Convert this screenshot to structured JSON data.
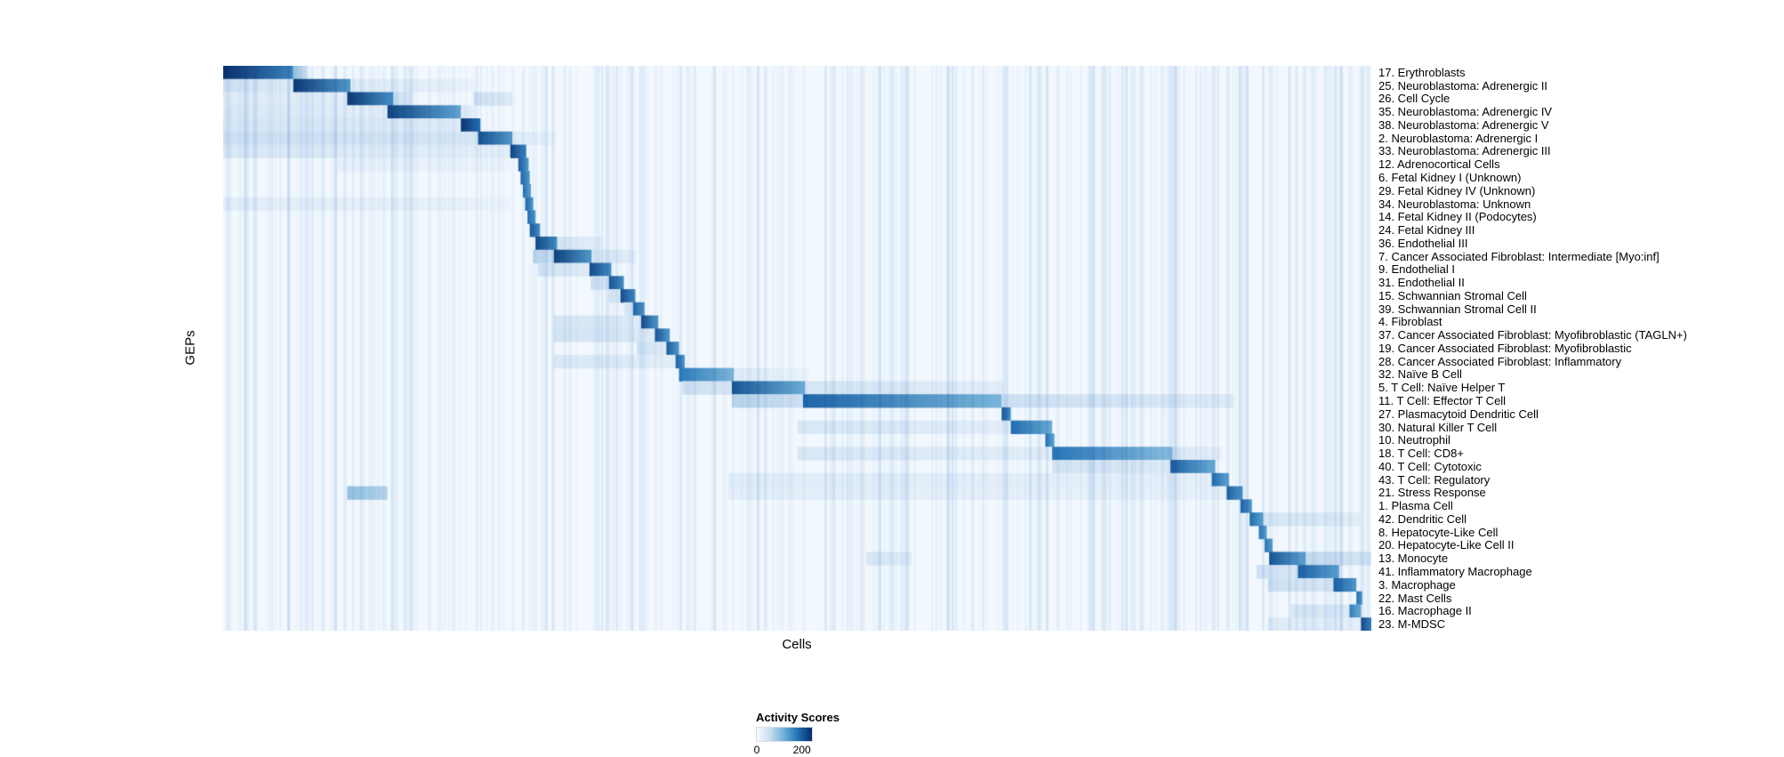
{
  "figure": {
    "y_axis_label": "GEPs",
    "x_axis_label": "Cells"
  },
  "legend": {
    "title": "Activity Scores",
    "min_label": "0",
    "max_label": "200"
  },
  "chart_data": {
    "type": "heatmap",
    "title": "",
    "xlabel": "Cells",
    "ylabel": "GEPs",
    "legend_position": "bottom-center",
    "grid": false,
    "colorbar": {
      "title": "Activity Scores",
      "ticks": [
        0,
        200
      ]
    },
    "colormap": {
      "stops": [
        "#f7fbff",
        "#c6dbef",
        "#6baed6",
        "#2171b5",
        "#08306b"
      ],
      "vmin": 0,
      "vmax": 240
    },
    "background_value": 6,
    "rows": [
      {
        "label": "17. Erythroblasts",
        "segments": [
          [
            0.0,
            0.061,
            240,
            160
          ],
          [
            0.061,
            0.073,
            100,
            40
          ]
        ]
      },
      {
        "label": "25. Neuroblastoma: Adrenergic II",
        "segments": [
          [
            0.0,
            0.061,
            50,
            30
          ],
          [
            0.061,
            0.111,
            230,
            140
          ],
          [
            0.111,
            0.22,
            30,
            15
          ]
        ]
      },
      {
        "label": "26. Cell Cycle",
        "segments": [
          [
            0.0,
            0.108,
            30,
            25
          ],
          [
            0.108,
            0.148,
            230,
            150
          ],
          [
            0.148,
            0.165,
            60,
            20
          ],
          [
            0.218,
            0.252,
            50,
            30
          ]
        ]
      },
      {
        "label": "35. Neuroblastoma: Adrenergic IV",
        "segments": [
          [
            0.0,
            0.143,
            35,
            25
          ],
          [
            0.143,
            0.207,
            220,
            130
          ],
          [
            0.207,
            0.22,
            40,
            20
          ]
        ]
      },
      {
        "label": "38. Neuroblastoma: Adrenergic V",
        "segments": [
          [
            0.0,
            0.207,
            40,
            30
          ],
          [
            0.207,
            0.224,
            235,
            180
          ]
        ]
      },
      {
        "label": "2. Neuroblastoma: Adrenergic I",
        "segments": [
          [
            0.0,
            0.222,
            50,
            40
          ],
          [
            0.222,
            0.252,
            210,
            140
          ],
          [
            0.252,
            0.29,
            30,
            15
          ]
        ]
      },
      {
        "label": "33. Neuroblastoma: Adrenergic III",
        "segments": [
          [
            0.0,
            0.25,
            35,
            25
          ],
          [
            0.25,
            0.264,
            220,
            160
          ]
        ]
      },
      {
        "label": "12. Adrenocortical Cells",
        "segments": [
          [
            0.1,
            0.25,
            20,
            15
          ],
          [
            0.257,
            0.266,
            200,
            140
          ]
        ]
      },
      {
        "label": "6. Fetal Kidney I (Unknown)",
        "segments": [
          [
            0.259,
            0.267,
            190,
            140
          ]
        ]
      },
      {
        "label": "29. Fetal Kidney IV (Unknown)",
        "segments": [
          [
            0.261,
            0.268,
            180,
            130
          ]
        ]
      },
      {
        "label": "34. Neuroblastoma: Unknown",
        "segments": [
          [
            0.0,
            0.25,
            25,
            15
          ],
          [
            0.263,
            0.27,
            190,
            140
          ]
        ]
      },
      {
        "label": "14. Fetal Kidney II (Podocytes)",
        "segments": [
          [
            0.265,
            0.272,
            185,
            140
          ]
        ]
      },
      {
        "label": "24. Fetal Kidney III",
        "segments": [
          [
            0.267,
            0.276,
            200,
            150
          ]
        ]
      },
      {
        "label": "36. Endothelial III",
        "segments": [
          [
            0.272,
            0.291,
            220,
            150
          ],
          [
            0.291,
            0.33,
            45,
            20
          ]
        ]
      },
      {
        "label": "7. Cancer Associated Fibroblast: Intermediate [Myo:inf]",
        "segments": [
          [
            0.27,
            0.288,
            70,
            50
          ],
          [
            0.288,
            0.321,
            225,
            140
          ],
          [
            0.321,
            0.36,
            40,
            20
          ]
        ]
      },
      {
        "label": "9. Endothelial I",
        "segments": [
          [
            0.274,
            0.319,
            45,
            30
          ],
          [
            0.319,
            0.338,
            215,
            150
          ]
        ]
      },
      {
        "label": "31. Endothelial II",
        "segments": [
          [
            0.32,
            0.336,
            50,
            35
          ],
          [
            0.336,
            0.349,
            205,
            150
          ]
        ]
      },
      {
        "label": "15. Schwannian Stromal Cell",
        "segments": [
          [
            0.336,
            0.346,
            40,
            30
          ],
          [
            0.346,
            0.359,
            215,
            150
          ]
        ]
      },
      {
        "label": "39. Schwannian Stromal Cell II",
        "segments": [
          [
            0.349,
            0.357,
            40,
            30
          ],
          [
            0.357,
            0.367,
            195,
            140
          ]
        ]
      },
      {
        "label": "4. Fibroblast",
        "segments": [
          [
            0.288,
            0.364,
            40,
            30
          ],
          [
            0.364,
            0.379,
            215,
            140
          ]
        ]
      },
      {
        "label": "37. Cancer Associated Fibroblast: Myofibroblastic (TAGLN+)",
        "segments": [
          [
            0.288,
            0.376,
            45,
            30
          ],
          [
            0.376,
            0.389,
            205,
            140
          ]
        ]
      },
      {
        "label": "19. Cancer Associated Fibroblast: Myofibroblastic",
        "segments": [
          [
            0.36,
            0.386,
            45,
            30
          ],
          [
            0.386,
            0.397,
            200,
            140
          ]
        ]
      },
      {
        "label": "28. Cancer Associated Fibroblast: Inflammatory",
        "segments": [
          [
            0.288,
            0.394,
            35,
            25
          ],
          [
            0.394,
            0.402,
            195,
            140
          ]
        ]
      },
      {
        "label": "32. Naïve B Cell",
        "segments": [
          [
            0.397,
            0.445,
            170,
            110
          ],
          [
            0.445,
            0.51,
            30,
            15
          ]
        ]
      },
      {
        "label": "5. T Cell: Naïve Helper T",
        "segments": [
          [
            0.4,
            0.443,
            50,
            40
          ],
          [
            0.443,
            0.507,
            205,
            120
          ],
          [
            0.507,
            0.68,
            40,
            25
          ]
        ]
      },
      {
        "label": "11. T Cell: Effector T Cell",
        "segments": [
          [
            0.443,
            0.505,
            70,
            50
          ],
          [
            0.505,
            0.678,
            190,
            110
          ],
          [
            0.678,
            0.88,
            50,
            30
          ]
        ]
      },
      {
        "label": "27. Plasmacytoid Dendritic Cell",
        "segments": [
          [
            0.678,
            0.686,
            200,
            150
          ]
        ]
      },
      {
        "label": "30. Natural Killer T Cell",
        "segments": [
          [
            0.5,
            0.686,
            35,
            25
          ],
          [
            0.686,
            0.722,
            185,
            120
          ]
        ]
      },
      {
        "label": "10. Neutrophil",
        "segments": [
          [
            0.716,
            0.724,
            175,
            130
          ]
        ]
      },
      {
        "label": "18. T Cell: CD8+",
        "segments": [
          [
            0.5,
            0.722,
            35,
            25
          ],
          [
            0.722,
            0.827,
            175,
            100
          ],
          [
            0.827,
            0.87,
            35,
            20
          ]
        ]
      },
      {
        "label": "40. T Cell: Cytotoxic",
        "segments": [
          [
            0.722,
            0.825,
            45,
            30
          ],
          [
            0.825,
            0.864,
            195,
            120
          ]
        ]
      },
      {
        "label": "43. T Cell: Regulatory",
        "segments": [
          [
            0.44,
            0.861,
            28,
            20
          ],
          [
            0.861,
            0.876,
            185,
            130
          ]
        ]
      },
      {
        "label": "21. Stress Response",
        "segments": [
          [
            0.108,
            0.143,
            95,
            70
          ],
          [
            0.44,
            0.874,
            25,
            18
          ],
          [
            0.874,
            0.888,
            195,
            140
          ]
        ]
      },
      {
        "label": "1. Plasma Cell",
        "segments": [
          [
            0.886,
            0.896,
            190,
            140
          ]
        ]
      },
      {
        "label": "42. Dendritic Cell",
        "segments": [
          [
            0.894,
            0.906,
            185,
            130
          ],
          [
            0.906,
            0.99,
            40,
            25
          ]
        ]
      },
      {
        "label": "8. Hepatocyte-Like Cell",
        "segments": [
          [
            0.902,
            0.909,
            175,
            130
          ]
        ]
      },
      {
        "label": "20. Hepatocyte-Like Cell II",
        "segments": [
          [
            0.907,
            0.914,
            175,
            130
          ]
        ]
      },
      {
        "label": "13. Monocyte",
        "segments": [
          [
            0.56,
            0.6,
            40,
            25
          ],
          [
            0.911,
            0.943,
            205,
            130
          ],
          [
            0.943,
            1.0,
            60,
            40
          ]
        ]
      },
      {
        "label": "41. Inflammatory Macrophage",
        "segments": [
          [
            0.9,
            0.936,
            50,
            35
          ],
          [
            0.936,
            0.972,
            195,
            130
          ]
        ]
      },
      {
        "label": "3. Macrophage",
        "segments": [
          [
            0.91,
            0.967,
            50,
            35
          ],
          [
            0.967,
            0.987,
            195,
            140
          ]
        ]
      },
      {
        "label": "22. Mast Cells",
        "segments": [
          [
            0.987,
            0.992,
            185,
            140
          ]
        ]
      },
      {
        "label": "16. Macrophage II",
        "segments": [
          [
            0.93,
            0.981,
            40,
            30
          ],
          [
            0.981,
            0.991,
            165,
            120
          ]
        ]
      },
      {
        "label": "23. M-MDSC",
        "segments": [
          [
            0.91,
            0.991,
            30,
            20
          ],
          [
            0.991,
            1.0,
            215,
            160
          ]
        ]
      }
    ]
  }
}
